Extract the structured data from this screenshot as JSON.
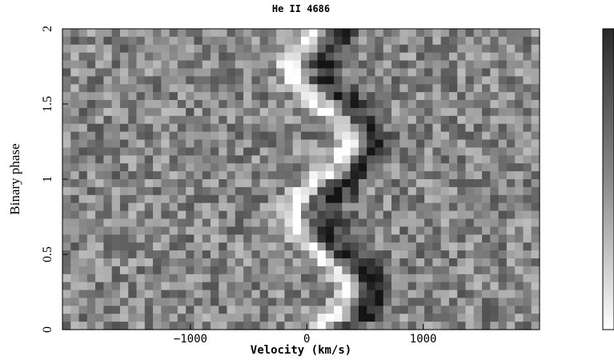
{
  "chart_data": {
    "type": "heatmap",
    "title": "He II 4686",
    "xlabel": "Velocity (km/s)",
    "ylabel": "Binary phase",
    "xlim": [
      -2100,
      2000
    ],
    "ylim": [
      0,
      2
    ],
    "xticks": [
      {
        "value": -1000,
        "label": "−1000"
      },
      {
        "value": 0,
        "label": "0"
      },
      {
        "value": 1000,
        "label": "1000"
      }
    ],
    "yticks": [
      {
        "value": 0,
        "label": "0"
      },
      {
        "value": 0.5,
        "label": "0.5"
      },
      {
        "value": 1,
        "label": "1"
      },
      {
        "value": 1.5,
        "label": "1.5"
      },
      {
        "value": 2,
        "label": "2"
      }
    ],
    "colorbar": {
      "colormap": "grayscale",
      "orientation": "vertical",
      "high": "dark",
      "low": "white"
    },
    "features": [
      {
        "name": "emission S-wave",
        "color": "white",
        "phase_period": 1.0,
        "velocity_amplitude": 250,
        "velocity_center": 100
      },
      {
        "name": "absorption trough",
        "color": "dark",
        "phase_period": 1.0,
        "velocity_amplitude": 200,
        "velocity_center": 150
      }
    ]
  }
}
